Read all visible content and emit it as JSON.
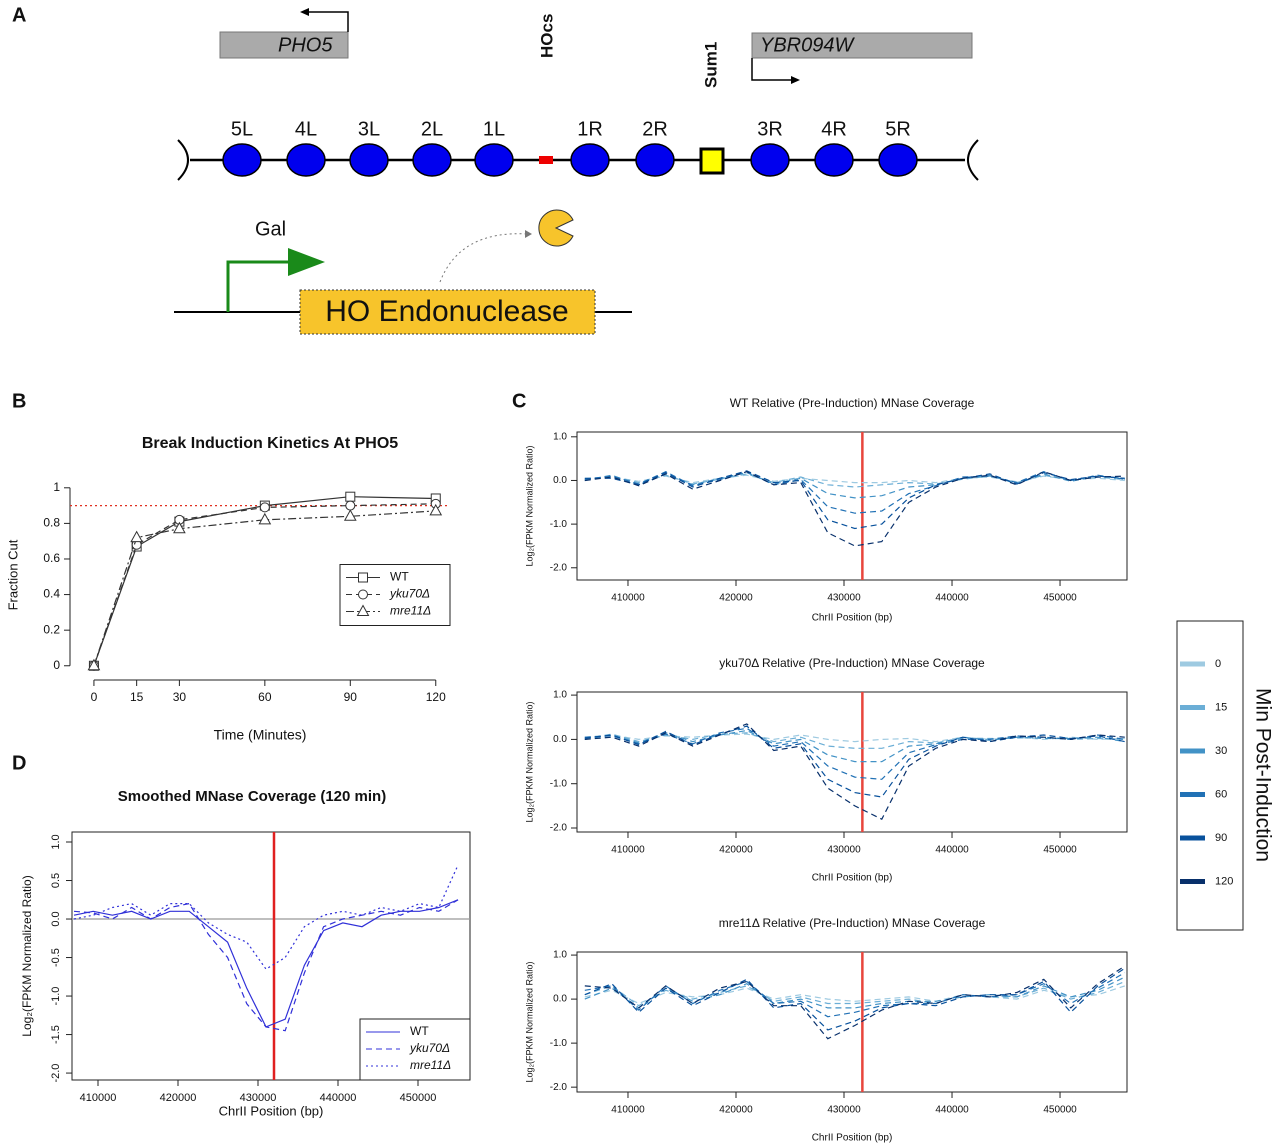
{
  "diagram": {
    "label": "A",
    "genes": [
      {
        "name": "PHO5"
      },
      {
        "name": "YBR094W"
      }
    ],
    "sites": [
      "HOcs",
      "Sum1"
    ],
    "nucleosomes": [
      "5L",
      "4L",
      "3L",
      "2L",
      "1L",
      "1R",
      "2R",
      "3R",
      "4R",
      "5R"
    ],
    "promoter": "Gal",
    "enzyme": "HO Endonuclease"
  },
  "chart_data": [
    {
      "type": "line",
      "panel": "B",
      "title": "Break Induction Kinetics At PHO5",
      "x_label": "Time (Minutes)",
      "y_label": "Fraction Cut",
      "x": [
        0,
        15,
        30,
        60,
        90,
        120
      ],
      "xlim": [
        -8.4,
        125
      ],
      "xticks": [
        0,
        15,
        30,
        60,
        90,
        120
      ],
      "ylim": [
        -0.08,
        1.1
      ],
      "yticks": [
        0,
        0.2,
        0.4,
        0.6,
        0.8,
        1
      ],
      "reference_lines": [
        {
          "axis": "y",
          "value": 0.9,
          "color": "#e03020",
          "style": "dotted"
        }
      ],
      "frame": false,
      "legend": "right-middle",
      "series": [
        {
          "name": "WT",
          "color": "#333333",
          "style": "solid",
          "marker": "square",
          "values": [
            0,
            0.67,
            0.81,
            0.9,
            0.95,
            0.94
          ]
        },
        {
          "name": "yku70Δ",
          "color": "#333333",
          "style": "dashed",
          "marker": "circle",
          "values": [
            0,
            0.68,
            0.82,
            0.89,
            0.9,
            0.91
          ]
        },
        {
          "name": "mre11Δ",
          "color": "#333333",
          "style": "dotdash",
          "marker": "triangle",
          "values": [
            0,
            0.72,
            0.77,
            0.82,
            0.84,
            0.87
          ]
        }
      ]
    },
    {
      "type": "line",
      "panel": "C",
      "title": "WT Relative (Pre-Induction) MNase Coverage",
      "x_label": "ChrII Position (bp)",
      "y_label": "Log₂(FPKM Normalized Ratio)",
      "x": [
        406000,
        408500,
        411000,
        413500,
        416000,
        418500,
        421000,
        423500,
        426000,
        428500,
        431000,
        433500,
        436000,
        438500,
        441000,
        443500,
        446000,
        448500,
        451000,
        453500,
        456000
      ],
      "xlim": [
        405280,
        456200
      ],
      "xticks": [
        410000,
        420000,
        430000,
        440000,
        450000
      ],
      "ylim": [
        -2.28,
        1.11
      ],
      "yticks": [
        {
          "value": 1,
          "label": "1.0"
        },
        {
          "value": 0,
          "label": "0.0"
        },
        {
          "value": -1,
          "label": "-1.0"
        },
        {
          "value": -2,
          "label": "-2.0"
        }
      ],
      "reference_lines": [
        {
          "axis": "x",
          "value": 431700,
          "color": "#e8453c",
          "style": "solid"
        }
      ],
      "frame": true,
      "legend": "outside-right",
      "legend_title": "Min Post-Induction",
      "series": [
        {
          "name": "0",
          "color": "#9ecae1",
          "style": "dashed",
          "values": [
            0.05,
            0.08,
            -0.02,
            0.1,
            -0.05,
            0.05,
            0.12,
            -0.02,
            0.05,
            0.0,
            -0.05,
            -0.05,
            0.0,
            -0.05,
            0.05,
            0.08,
            -0.03,
            0.1,
            0.02,
            0.05,
            0.0
          ]
        },
        {
          "name": "15",
          "color": "#6baed6",
          "style": "dashed",
          "values": [
            0.02,
            0.1,
            -0.05,
            0.12,
            -0.08,
            0.03,
            0.15,
            -0.05,
            0.08,
            -0.1,
            -0.15,
            -0.1,
            -0.05,
            -0.08,
            0.03,
            0.1,
            -0.05,
            0.12,
            0.0,
            0.08,
            0.02
          ]
        },
        {
          "name": "30",
          "color": "#4292c6",
          "style": "dashed",
          "values": [
            0.0,
            0.12,
            -0.1,
            0.15,
            -0.1,
            0.05,
            0.18,
            -0.08,
            0.05,
            -0.3,
            -0.4,
            -0.35,
            -0.15,
            -0.1,
            0.05,
            0.12,
            -0.08,
            0.15,
            -0.02,
            0.1,
            0.05
          ]
        },
        {
          "name": "60",
          "color": "#2171b5",
          "style": "dashed",
          "values": [
            0.03,
            0.1,
            -0.08,
            0.2,
            -0.12,
            0.02,
            0.2,
            -0.1,
            0.02,
            -0.6,
            -0.75,
            -0.7,
            -0.3,
            -0.12,
            0.08,
            0.1,
            -0.05,
            0.2,
            0.0,
            0.12,
            0.03
          ]
        },
        {
          "name": "90",
          "color": "#08519c",
          "style": "dashed",
          "values": [
            0.05,
            0.05,
            -0.1,
            0.18,
            -0.15,
            0.05,
            0.22,
            -0.05,
            0.0,
            -0.9,
            -1.1,
            -1.0,
            -0.4,
            -0.1,
            0.05,
            0.15,
            -0.08,
            0.18,
            0.02,
            0.1,
            0.05
          ]
        },
        {
          "name": "120",
          "color": "#08306b",
          "style": "dashed",
          "values": [
            0.0,
            0.08,
            -0.12,
            0.15,
            -0.2,
            0.0,
            0.2,
            -0.1,
            -0.05,
            -1.2,
            -1.5,
            -1.4,
            -0.5,
            -0.15,
            0.05,
            0.12,
            -0.1,
            0.2,
            0.0,
            0.08,
            0.1
          ]
        }
      ]
    },
    {
      "type": "line",
      "title": "yku70Δ Relative (Pre-Induction) MNase Coverage",
      "x_label": "ChrII Position (bp)",
      "y_label": "Log₂(FPKM Normalized Ratio)",
      "x": [
        406000,
        408500,
        411000,
        413500,
        416000,
        418500,
        421000,
        423500,
        426000,
        428500,
        431000,
        433500,
        436000,
        438500,
        441000,
        443500,
        446000,
        448500,
        451000,
        453500,
        456000
      ],
      "xlim": [
        405280,
        456200
      ],
      "xticks": [
        410000,
        420000,
        430000,
        440000,
        450000
      ],
      "ylim": [
        -2.09,
        1.07
      ],
      "yticks": [
        {
          "value": 1,
          "label": "1.0"
        },
        {
          "value": 0,
          "label": "0.0"
        },
        {
          "value": -1,
          "label": "-1.0"
        },
        {
          "value": -2,
          "label": "-2.0"
        }
      ],
      "reference_lines": [
        {
          "axis": "x",
          "value": 431700,
          "color": "#e8453c",
          "style": "solid"
        }
      ],
      "frame": true,
      "series": [
        {
          "color": "#9ecae1",
          "style": "dashed",
          "values": [
            0.05,
            0.1,
            0.0,
            0.08,
            0.05,
            0.1,
            0.12,
            0.0,
            0.1,
            0.0,
            -0.05,
            0.0,
            0.02,
            -0.05,
            0.05,
            0.0,
            0.05,
            0.0,
            0.05,
            0.0,
            0.02
          ]
        },
        {
          "color": "#6baed6",
          "style": "dashed",
          "values": [
            0.02,
            0.12,
            -0.05,
            0.1,
            0.0,
            0.12,
            0.15,
            -0.05,
            0.05,
            -0.15,
            -0.2,
            -0.2,
            -0.05,
            -0.08,
            0.03,
            0.02,
            0.03,
            0.05,
            0.0,
            0.02,
            0.0
          ]
        },
        {
          "color": "#4292c6",
          "style": "dashed",
          "values": [
            0.0,
            0.1,
            -0.08,
            0.15,
            -0.05,
            0.1,
            0.2,
            -0.1,
            0.0,
            -0.35,
            -0.5,
            -0.5,
            -0.15,
            -0.1,
            0.05,
            -0.02,
            0.05,
            0.02,
            0.02,
            0.05,
            -0.05
          ]
        },
        {
          "color": "#2171b5",
          "style": "dashed",
          "values": [
            0.05,
            0.08,
            -0.1,
            0.12,
            -0.1,
            0.15,
            0.25,
            -0.15,
            -0.05,
            -0.6,
            -0.85,
            -0.9,
            -0.3,
            -0.12,
            0.0,
            0.0,
            0.08,
            0.05,
            0.0,
            0.1,
            0.0
          ]
        },
        {
          "color": "#08519c",
          "style": "dashed",
          "values": [
            0.03,
            0.1,
            -0.12,
            0.18,
            -0.12,
            0.12,
            0.3,
            -0.2,
            -0.1,
            -0.9,
            -1.2,
            -1.3,
            -0.45,
            -0.15,
            0.05,
            -0.05,
            0.05,
            0.1,
            0.02,
            0.08,
            -0.05
          ]
        },
        {
          "color": "#08306b",
          "style": "dashed",
          "values": [
            0.0,
            0.05,
            -0.15,
            0.15,
            -0.15,
            0.1,
            0.35,
            -0.25,
            -0.15,
            -1.1,
            -1.5,
            -1.8,
            -0.6,
            -0.2,
            0.0,
            -0.05,
            0.08,
            0.05,
            0.0,
            0.1,
            0.05
          ]
        }
      ]
    },
    {
      "type": "line",
      "title": "mre11Δ Relative (Pre-Induction) MNase Coverage",
      "x_label": "ChrII Position (bp)",
      "y_label": "Log₂(FPKM Normalized Ratio)",
      "x": [
        406000,
        408500,
        411000,
        413500,
        416000,
        418500,
        421000,
        423500,
        426000,
        428500,
        431000,
        433500,
        436000,
        438500,
        441000,
        443500,
        446000,
        448500,
        451000,
        453500,
        456000
      ],
      "xlim": [
        405280,
        456200
      ],
      "xticks": [
        410000,
        420000,
        430000,
        440000,
        450000
      ],
      "ylim": [
        -2.11,
        1.07
      ],
      "yticks": [
        {
          "value": 1,
          "label": "1.0"
        },
        {
          "value": 0,
          "label": "0.0"
        },
        {
          "value": -1,
          "label": "-1.0"
        },
        {
          "value": -2,
          "label": "-2.0"
        }
      ],
      "reference_lines": [
        {
          "axis": "x",
          "value": 431700,
          "color": "#e8453c",
          "style": "solid"
        }
      ],
      "frame": true,
      "series": [
        {
          "color": "#9ecae1",
          "style": "dashed",
          "values": [
            0.05,
            0.2,
            -0.1,
            0.15,
            0.05,
            0.1,
            0.25,
            0.0,
            0.1,
            0.0,
            -0.05,
            0.0,
            0.05,
            -0.05,
            0.1,
            0.05,
            0.0,
            0.2,
            0.05,
            0.1,
            0.3
          ]
        },
        {
          "color": "#6baed6",
          "style": "dashed",
          "values": [
            0.1,
            0.3,
            -0.15,
            0.2,
            0.0,
            0.15,
            0.3,
            -0.05,
            0.05,
            -0.1,
            -0.1,
            -0.05,
            0.0,
            -0.1,
            0.1,
            0.05,
            0.05,
            0.25,
            0.0,
            0.15,
            0.4
          ]
        },
        {
          "color": "#4292c6",
          "style": "dashed",
          "values": [
            0.0,
            0.25,
            -0.2,
            0.25,
            -0.05,
            0.1,
            0.35,
            -0.1,
            0.0,
            -0.2,
            -0.2,
            -0.1,
            -0.05,
            -0.05,
            0.05,
            0.1,
            0.05,
            0.3,
            0.05,
            0.2,
            0.5
          ]
        },
        {
          "color": "#2171b5",
          "style": "dashed",
          "values": [
            0.2,
            0.3,
            -0.25,
            0.3,
            -0.1,
            0.2,
            0.4,
            -0.1,
            -0.05,
            -0.4,
            -0.3,
            -0.15,
            -0.1,
            -0.1,
            0.1,
            0.05,
            0.1,
            0.35,
            -0.1,
            0.25,
            0.6
          ]
        },
        {
          "color": "#08519c",
          "style": "dashed",
          "values": [
            0.1,
            0.35,
            -0.3,
            0.25,
            -0.15,
            0.15,
            0.45,
            -0.2,
            -0.1,
            -0.7,
            -0.5,
            -0.2,
            -0.1,
            -0.15,
            0.05,
            0.1,
            0.1,
            0.4,
            -0.3,
            0.3,
            0.7
          ]
        },
        {
          "color": "#08306b",
          "style": "dashed",
          "values": [
            0.3,
            0.25,
            -0.2,
            0.3,
            -0.1,
            0.25,
            0.4,
            -0.15,
            -0.15,
            -0.9,
            -0.6,
            -0.25,
            -0.05,
            -0.1,
            0.1,
            0.05,
            0.15,
            0.45,
            -0.2,
            0.35,
            0.75
          ]
        }
      ]
    },
    {
      "type": "line",
      "panel": "D",
      "title": "Smoothed MNase Coverage (120 min)",
      "x_label": "ChrII Position (bp)",
      "y_label": "Log₂(FPKM Normalized Ratio)",
      "x": [
        407000,
        409400,
        411800,
        414200,
        416600,
        419000,
        421400,
        423800,
        426200,
        428600,
        431000,
        433400,
        435800,
        438200,
        440600,
        443000,
        445400,
        447800,
        450200,
        452600,
        455000
      ],
      "xlim": [
        406750,
        456500
      ],
      "xticks": [
        410000,
        420000,
        430000,
        440000,
        450000
      ],
      "ylim": [
        -2.09,
        1.13
      ],
      "yticks": [
        {
          "value": 1,
          "label": "1.0"
        },
        0.5,
        {
          "value": 0,
          "label": "0.0"
        },
        -0.5,
        {
          "value": -1,
          "label": "-1.0"
        },
        -1.5,
        {
          "value": -2,
          "label": "-2.0"
        }
      ],
      "reference_lines": [
        {
          "axis": "y",
          "value": 0,
          "color": "#999999",
          "style": "solid"
        },
        {
          "axis": "x",
          "value": 432000,
          "color": "#e02020",
          "style": "solid"
        }
      ],
      "frame": true,
      "legend": "bottom-right",
      "series": [
        {
          "name": "WT",
          "color": "#3030d8",
          "style": "solid",
          "values": [
            0.05,
            0.1,
            0.05,
            0.1,
            0.0,
            0.1,
            0.1,
            -0.1,
            -0.3,
            -0.9,
            -1.4,
            -1.3,
            -0.6,
            -0.15,
            -0.05,
            -0.1,
            0.05,
            0.1,
            0.1,
            0.15,
            0.25
          ]
        },
        {
          "name": "yku70Δ",
          "color": "#3030d8",
          "style": "dashed",
          "values": [
            0.1,
            0.08,
            0.0,
            0.15,
            0.0,
            0.15,
            0.2,
            -0.2,
            -0.5,
            -1.1,
            -1.4,
            -1.45,
            -0.7,
            -0.1,
            0.0,
            0.05,
            0.1,
            0.05,
            0.15,
            0.1,
            0.25
          ]
        },
        {
          "name": "mre11Δ",
          "color": "#3030d8",
          "style": "dotted",
          "values": [
            0.0,
            0.05,
            0.15,
            0.2,
            0.05,
            0.2,
            0.2,
            -0.05,
            -0.2,
            -0.3,
            -0.65,
            -0.5,
            -0.1,
            0.05,
            0.1,
            0.05,
            0.15,
            0.1,
            0.2,
            0.15,
            0.7
          ]
        }
      ]
    }
  ]
}
